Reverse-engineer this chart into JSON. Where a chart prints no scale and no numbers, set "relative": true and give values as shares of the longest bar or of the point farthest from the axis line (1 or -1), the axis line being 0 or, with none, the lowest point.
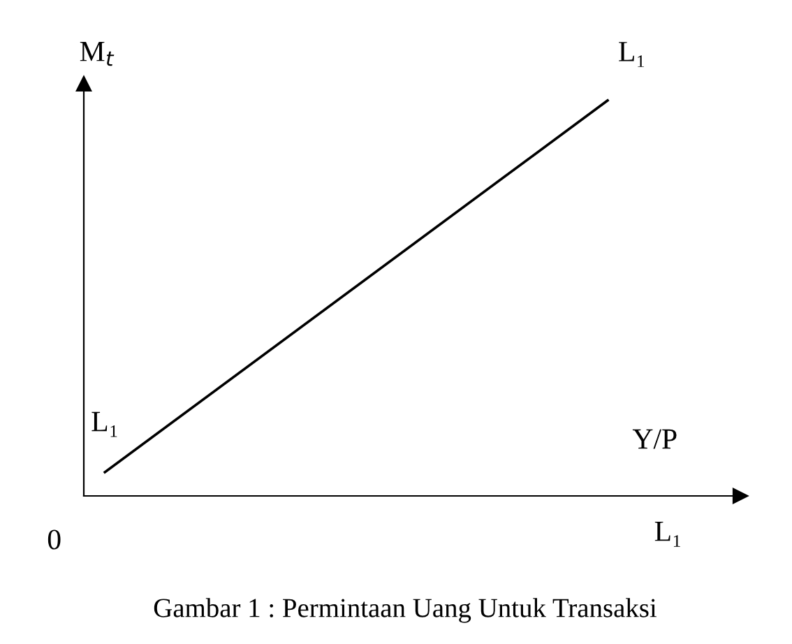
{
  "chart_data": {
    "type": "line",
    "relative": true,
    "categories": [
      null,
      null
    ],
    "series": [
      {
        "color": "#000000",
        "values": [
          0.06,
          1
        ]
      }
    ],
    "ylabel": "M$_{t}$",
    "xlabel": "Y/P",
    "title": "Gambar 1 : Permintaan Uang Untuk Transaksi",
    "annotations": [
      {
        "text": "L₁",
        "y": 0.06
      },
      "L₁",
      "0",
      "L₁"
    ],
    "marker": "none",
    "line_style": "solid"
  }
}
